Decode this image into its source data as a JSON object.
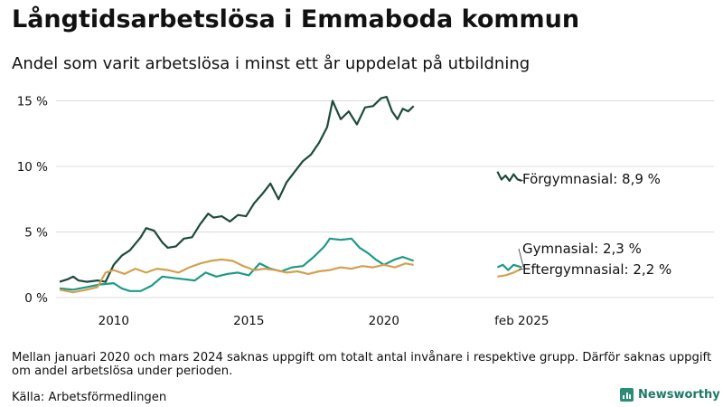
{
  "header": {
    "title": "Långtidsarbetslösa i Emmaboda kommun",
    "subtitle": "Andel som varit arbetslösa i minst ett år uppdelat på utbildning"
  },
  "footer": {
    "note": "Mellan januari 2020 och mars 2024 saknas uppgift om totalt antal invånare i respektive grupp. Därför saknas uppgift om andel arbetslösa under perioden.",
    "source": "Källa: Arbetsförmedlingen",
    "brand": "Newsworthy"
  },
  "chart_data": {
    "type": "line",
    "xlim": [
      2008,
      2026.2
    ],
    "ylim": [
      0,
      16
    ],
    "x_ticks": [
      {
        "value": 2010,
        "label": "2010"
      },
      {
        "value": 2015,
        "label": "2015"
      },
      {
        "value": 2020,
        "label": "2020"
      },
      {
        "value": 2025.1,
        "label": "feb 2025"
      }
    ],
    "y_ticks": [
      {
        "value": 0,
        "label": "0 %"
      },
      {
        "value": 5,
        "label": "5 %"
      },
      {
        "value": 10,
        "label": "10 %"
      },
      {
        "value": 15,
        "label": "15 %"
      }
    ],
    "grid": "horizontal",
    "series": [
      {
        "name": "Förgymnasial",
        "end_label": "Förgymnasial: 8,9 %",
        "color": "#1d4a3e",
        "segments": [
          [
            [
              2008.0,
              1.2
            ],
            [
              2008.3,
              1.4
            ],
            [
              2008.5,
              1.6
            ],
            [
              2008.7,
              1.3
            ],
            [
              2009.0,
              1.2
            ],
            [
              2009.4,
              1.3
            ],
            [
              2009.7,
              1.2
            ],
            [
              2010.0,
              2.5
            ],
            [
              2010.3,
              3.2
            ],
            [
              2010.6,
              3.6
            ],
            [
              2011.0,
              4.6
            ],
            [
              2011.2,
              5.3
            ],
            [
              2011.5,
              5.1
            ],
            [
              2011.8,
              4.2
            ],
            [
              2012.0,
              3.8
            ],
            [
              2012.3,
              3.9
            ],
            [
              2012.6,
              4.5
            ],
            [
              2012.9,
              4.6
            ],
            [
              2013.2,
              5.6
            ],
            [
              2013.5,
              6.4
            ],
            [
              2013.7,
              6.1
            ],
            [
              2014.0,
              6.2
            ],
            [
              2014.3,
              5.8
            ],
            [
              2014.6,
              6.3
            ],
            [
              2014.9,
              6.2
            ],
            [
              2015.2,
              7.2
            ],
            [
              2015.5,
              7.9
            ],
            [
              2015.8,
              8.7
            ],
            [
              2016.1,
              7.5
            ],
            [
              2016.4,
              8.8
            ],
            [
              2016.7,
              9.6
            ],
            [
              2017.0,
              10.4
            ],
            [
              2017.3,
              10.9
            ],
            [
              2017.6,
              11.8
            ],
            [
              2017.9,
              13.0
            ],
            [
              2018.1,
              15.0
            ],
            [
              2018.4,
              13.6
            ],
            [
              2018.7,
              14.2
            ],
            [
              2019.0,
              13.2
            ],
            [
              2019.3,
              14.5
            ],
            [
              2019.6,
              14.6
            ],
            [
              2019.9,
              15.2
            ],
            [
              2020.1,
              15.3
            ],
            [
              2020.3,
              14.2
            ],
            [
              2020.5,
              13.6
            ],
            [
              2020.7,
              14.4
            ],
            [
              2020.9,
              14.2
            ],
            [
              2021.1,
              14.6
            ]
          ],
          [
            [
              2024.2,
              9.6
            ],
            [
              2024.35,
              9.0
            ],
            [
              2024.5,
              9.3
            ],
            [
              2024.65,
              8.9
            ],
            [
              2024.8,
              9.4
            ],
            [
              2024.95,
              9.0
            ],
            [
              2025.1,
              8.9
            ]
          ]
        ]
      },
      {
        "name": "Gymnasial",
        "end_label": "Gymnasial: 2,3 %",
        "color": "#1e9a86",
        "segments": [
          [
            [
              2008.0,
              0.7
            ],
            [
              2008.5,
              0.6
            ],
            [
              2009.0,
              0.8
            ],
            [
              2009.5,
              1.0
            ],
            [
              2010.0,
              1.1
            ],
            [
              2010.3,
              0.7
            ],
            [
              2010.6,
              0.5
            ],
            [
              2011.0,
              0.5
            ],
            [
              2011.4,
              0.9
            ],
            [
              2011.8,
              1.6
            ],
            [
              2012.2,
              1.5
            ],
            [
              2012.6,
              1.4
            ],
            [
              2013.0,
              1.3
            ],
            [
              2013.4,
              1.9
            ],
            [
              2013.8,
              1.6
            ],
            [
              2014.2,
              1.8
            ],
            [
              2014.6,
              1.9
            ],
            [
              2015.0,
              1.7
            ],
            [
              2015.4,
              2.6
            ],
            [
              2015.8,
              2.2
            ],
            [
              2016.2,
              2.0
            ],
            [
              2016.6,
              2.3
            ],
            [
              2017.0,
              2.4
            ],
            [
              2017.4,
              3.1
            ],
            [
              2017.8,
              3.9
            ],
            [
              2018.0,
              4.5
            ],
            [
              2018.4,
              4.4
            ],
            [
              2018.8,
              4.5
            ],
            [
              2019.1,
              3.8
            ],
            [
              2019.4,
              3.4
            ],
            [
              2019.7,
              2.9
            ],
            [
              2020.0,
              2.5
            ],
            [
              2020.4,
              2.9
            ],
            [
              2020.7,
              3.1
            ],
            [
              2021.1,
              2.8
            ]
          ],
          [
            [
              2024.2,
              2.3
            ],
            [
              2024.4,
              2.5
            ],
            [
              2024.6,
              2.1
            ],
            [
              2024.8,
              2.5
            ],
            [
              2025.1,
              2.3
            ]
          ]
        ]
      },
      {
        "name": "Eftergymnasial",
        "end_label": "Eftergymnasial: 2,2 %",
        "color": "#d3a050",
        "segments": [
          [
            [
              2008.0,
              0.6
            ],
            [
              2008.5,
              0.4
            ],
            [
              2009.0,
              0.6
            ],
            [
              2009.4,
              0.8
            ],
            [
              2009.7,
              1.9
            ],
            [
              2010.0,
              2.1
            ],
            [
              2010.4,
              1.8
            ],
            [
              2010.8,
              2.2
            ],
            [
              2011.2,
              1.9
            ],
            [
              2011.6,
              2.2
            ],
            [
              2012.0,
              2.1
            ],
            [
              2012.4,
              1.9
            ],
            [
              2012.8,
              2.3
            ],
            [
              2013.2,
              2.6
            ],
            [
              2013.6,
              2.8
            ],
            [
              2014.0,
              2.9
            ],
            [
              2014.4,
              2.8
            ],
            [
              2014.8,
              2.4
            ],
            [
              2015.2,
              2.1
            ],
            [
              2015.6,
              2.2
            ],
            [
              2016.0,
              2.1
            ],
            [
              2016.4,
              1.9
            ],
            [
              2016.8,
              2.0
            ],
            [
              2017.2,
              1.8
            ],
            [
              2017.6,
              2.0
            ],
            [
              2018.0,
              2.1
            ],
            [
              2018.4,
              2.3
            ],
            [
              2018.8,
              2.2
            ],
            [
              2019.2,
              2.4
            ],
            [
              2019.6,
              2.3
            ],
            [
              2020.0,
              2.5
            ],
            [
              2020.4,
              2.3
            ],
            [
              2020.8,
              2.6
            ],
            [
              2021.1,
              2.5
            ]
          ],
          [
            [
              2024.2,
              1.6
            ],
            [
              2024.5,
              1.7
            ],
            [
              2024.8,
              1.9
            ],
            [
              2025.1,
              2.2
            ]
          ]
        ]
      }
    ]
  }
}
